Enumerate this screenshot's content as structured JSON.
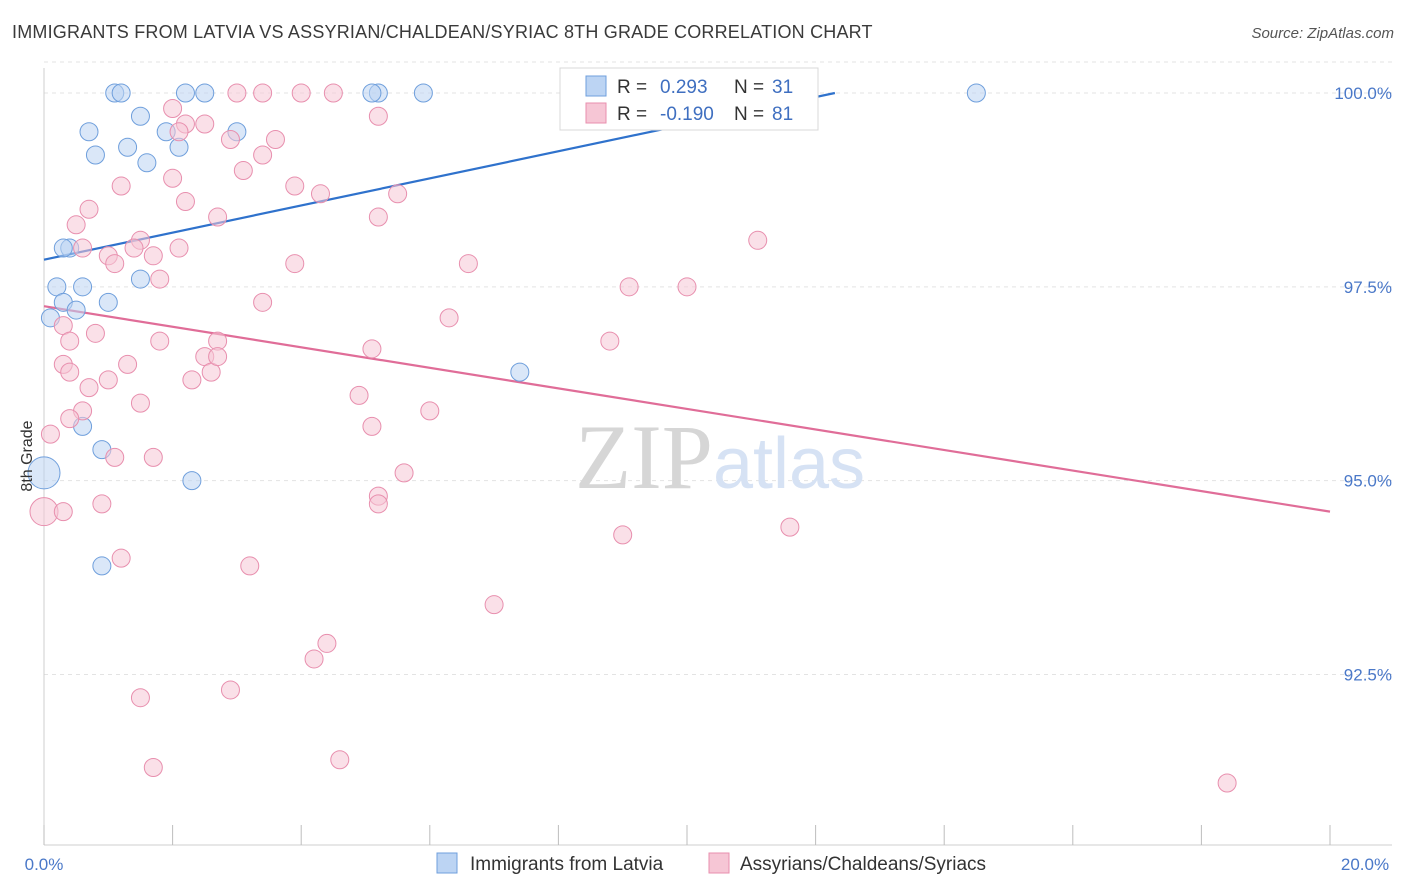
{
  "chart_data": {
    "type": "scatter",
    "title": "IMMIGRANTS FROM LATVIA VS ASSYRIAN/CHALDEAN/SYRIAC 8TH GRADE CORRELATION CHART",
    "source": "Source: ZipAtlas.com",
    "xlabel": "",
    "ylabel": "8th Grade",
    "xlim": [
      0,
      20
    ],
    "ylim": [
      90.3,
      100.4
    ],
    "x_tick_labels": [
      "0.0%",
      "20.0%"
    ],
    "y_ticks": [
      92.5,
      95.0,
      97.5,
      100.0
    ],
    "y_tick_labels": [
      "92.5%",
      "95.0%",
      "97.5%",
      "100.0%"
    ],
    "watermark": "ZIPatlas",
    "legend": {
      "row1": {
        "r_label": "R =",
        "r_value": "0.293",
        "n_label": "N =",
        "n_value": "31"
      },
      "row2": {
        "r_label": "R =",
        "r_value": "-0.190",
        "n_label": "N =",
        "n_value": "81"
      }
    },
    "series": [
      {
        "name": "Immigrants from Latvia",
        "color": "#6f9fdc",
        "fill": "#bcd4f3",
        "trend": {
          "x": [
            0.0,
            12.3
          ],
          "y": [
            97.85,
            100.0
          ]
        },
        "points": [
          [
            1.1,
            100
          ],
          [
            1.2,
            100
          ],
          [
            2.2,
            100
          ],
          [
            2.5,
            100
          ],
          [
            5.2,
            100
          ],
          [
            5.9,
            100
          ],
          [
            14.5,
            100
          ],
          [
            0.7,
            99.5
          ],
          [
            1.5,
            99.7
          ],
          [
            1.9,
            99.5
          ],
          [
            3.0,
            99.5
          ],
          [
            1.3,
            99.3
          ],
          [
            0.8,
            99.2
          ],
          [
            2.1,
            99.3
          ],
          [
            1.6,
            99.1
          ],
          [
            0.4,
            98.0
          ],
          [
            0.3,
            98.0
          ],
          [
            1.5,
            97.6
          ],
          [
            0.2,
            97.5
          ],
          [
            0.6,
            97.5
          ],
          [
            0.3,
            97.3
          ],
          [
            1.0,
            97.3
          ],
          [
            0.5,
            97.2
          ],
          [
            0.1,
            97.1
          ],
          [
            7.4,
            96.4
          ],
          [
            0.6,
            95.7
          ],
          [
            0.9,
            95.4
          ],
          [
            0.0,
            95.1
          ],
          [
            2.3,
            95.0
          ],
          [
            0.9,
            93.9
          ],
          [
            5.1,
            100
          ]
        ],
        "sizes": [
          9,
          9,
          9,
          9,
          9,
          9,
          9,
          9,
          9,
          9,
          9,
          9,
          9,
          9,
          9,
          9,
          9,
          9,
          9,
          9,
          9,
          9,
          9,
          9,
          9,
          9,
          9,
          16,
          9,
          9,
          9
        ]
      },
      {
        "name": "Assyrians/Chaldeans/Syriacs",
        "color": "#e88fae",
        "fill": "#f6c6d5",
        "trend": {
          "x": [
            0.0,
            20.0
          ],
          "y": [
            97.25,
            94.6
          ]
        },
        "points": [
          [
            3.0,
            100
          ],
          [
            3.4,
            100
          ],
          [
            4.0,
            100
          ],
          [
            4.5,
            100
          ],
          [
            2.0,
            99.8
          ],
          [
            2.2,
            99.6
          ],
          [
            2.5,
            99.6
          ],
          [
            5.2,
            99.7
          ],
          [
            2.9,
            99.4
          ],
          [
            3.6,
            99.4
          ],
          [
            2.1,
            99.5
          ],
          [
            3.4,
            99.2
          ],
          [
            2.0,
            98.9
          ],
          [
            1.2,
            98.8
          ],
          [
            3.1,
            99.0
          ],
          [
            3.9,
            98.8
          ],
          [
            4.3,
            98.7
          ],
          [
            5.5,
            98.7
          ],
          [
            2.2,
            98.6
          ],
          [
            2.7,
            98.4
          ],
          [
            5.2,
            98.4
          ],
          [
            0.7,
            98.5
          ],
          [
            0.5,
            98.3
          ],
          [
            1.5,
            98.1
          ],
          [
            0.6,
            98.0
          ],
          [
            1.4,
            98.0
          ],
          [
            2.1,
            98.0
          ],
          [
            1.0,
            97.9
          ],
          [
            1.7,
            97.9
          ],
          [
            1.1,
            97.8
          ],
          [
            3.9,
            97.8
          ],
          [
            6.6,
            97.8
          ],
          [
            11.1,
            98.1
          ],
          [
            1.8,
            97.6
          ],
          [
            9.1,
            97.5
          ],
          [
            10.0,
            97.5
          ],
          [
            3.4,
            97.3
          ],
          [
            6.3,
            97.1
          ],
          [
            0.3,
            97.0
          ],
          [
            0.8,
            96.9
          ],
          [
            1.8,
            96.8
          ],
          [
            0.4,
            96.8
          ],
          [
            2.7,
            96.8
          ],
          [
            5.1,
            96.7
          ],
          [
            8.8,
            96.8
          ],
          [
            2.5,
            96.6
          ],
          [
            0.3,
            96.5
          ],
          [
            1.3,
            96.5
          ],
          [
            0.4,
            96.4
          ],
          [
            2.6,
            96.4
          ],
          [
            1.0,
            96.3
          ],
          [
            2.3,
            96.3
          ],
          [
            0.7,
            96.2
          ],
          [
            4.9,
            96.1
          ],
          [
            1.5,
            96.0
          ],
          [
            0.6,
            95.9
          ],
          [
            6.0,
            95.9
          ],
          [
            0.4,
            95.8
          ],
          [
            5.1,
            95.7
          ],
          [
            0.1,
            95.6
          ],
          [
            1.1,
            95.3
          ],
          [
            1.7,
            95.3
          ],
          [
            5.6,
            95.1
          ],
          [
            5.2,
            94.8
          ],
          [
            5.2,
            94.7
          ],
          [
            0.9,
            94.7
          ],
          [
            0.0,
            94.6
          ],
          [
            0.3,
            94.6
          ],
          [
            11.6,
            94.4
          ],
          [
            9.0,
            94.3
          ],
          [
            1.2,
            94.0
          ],
          [
            3.2,
            93.9
          ],
          [
            7.0,
            93.4
          ],
          [
            4.4,
            92.9
          ],
          [
            4.2,
            92.7
          ],
          [
            2.9,
            92.3
          ],
          [
            1.5,
            92.2
          ],
          [
            4.6,
            91.4
          ],
          [
            1.7,
            91.3
          ],
          [
            18.4,
            91.1
          ],
          [
            2.7,
            96.6
          ]
        ],
        "sizes": [
          9,
          9,
          9,
          9,
          9,
          9,
          9,
          9,
          9,
          9,
          9,
          9,
          9,
          9,
          9,
          9,
          9,
          9,
          9,
          9,
          9,
          9,
          9,
          9,
          9,
          9,
          9,
          9,
          9,
          9,
          9,
          9,
          9,
          9,
          9,
          9,
          9,
          9,
          9,
          9,
          9,
          9,
          9,
          9,
          9,
          9,
          9,
          9,
          9,
          9,
          9,
          9,
          9,
          9,
          9,
          9,
          9,
          9,
          9,
          9,
          9,
          9,
          9,
          9,
          9,
          9,
          14,
          9,
          9,
          9,
          9,
          9,
          9,
          9,
          9,
          9,
          9,
          9,
          9,
          9,
          9
        ]
      }
    ]
  }
}
